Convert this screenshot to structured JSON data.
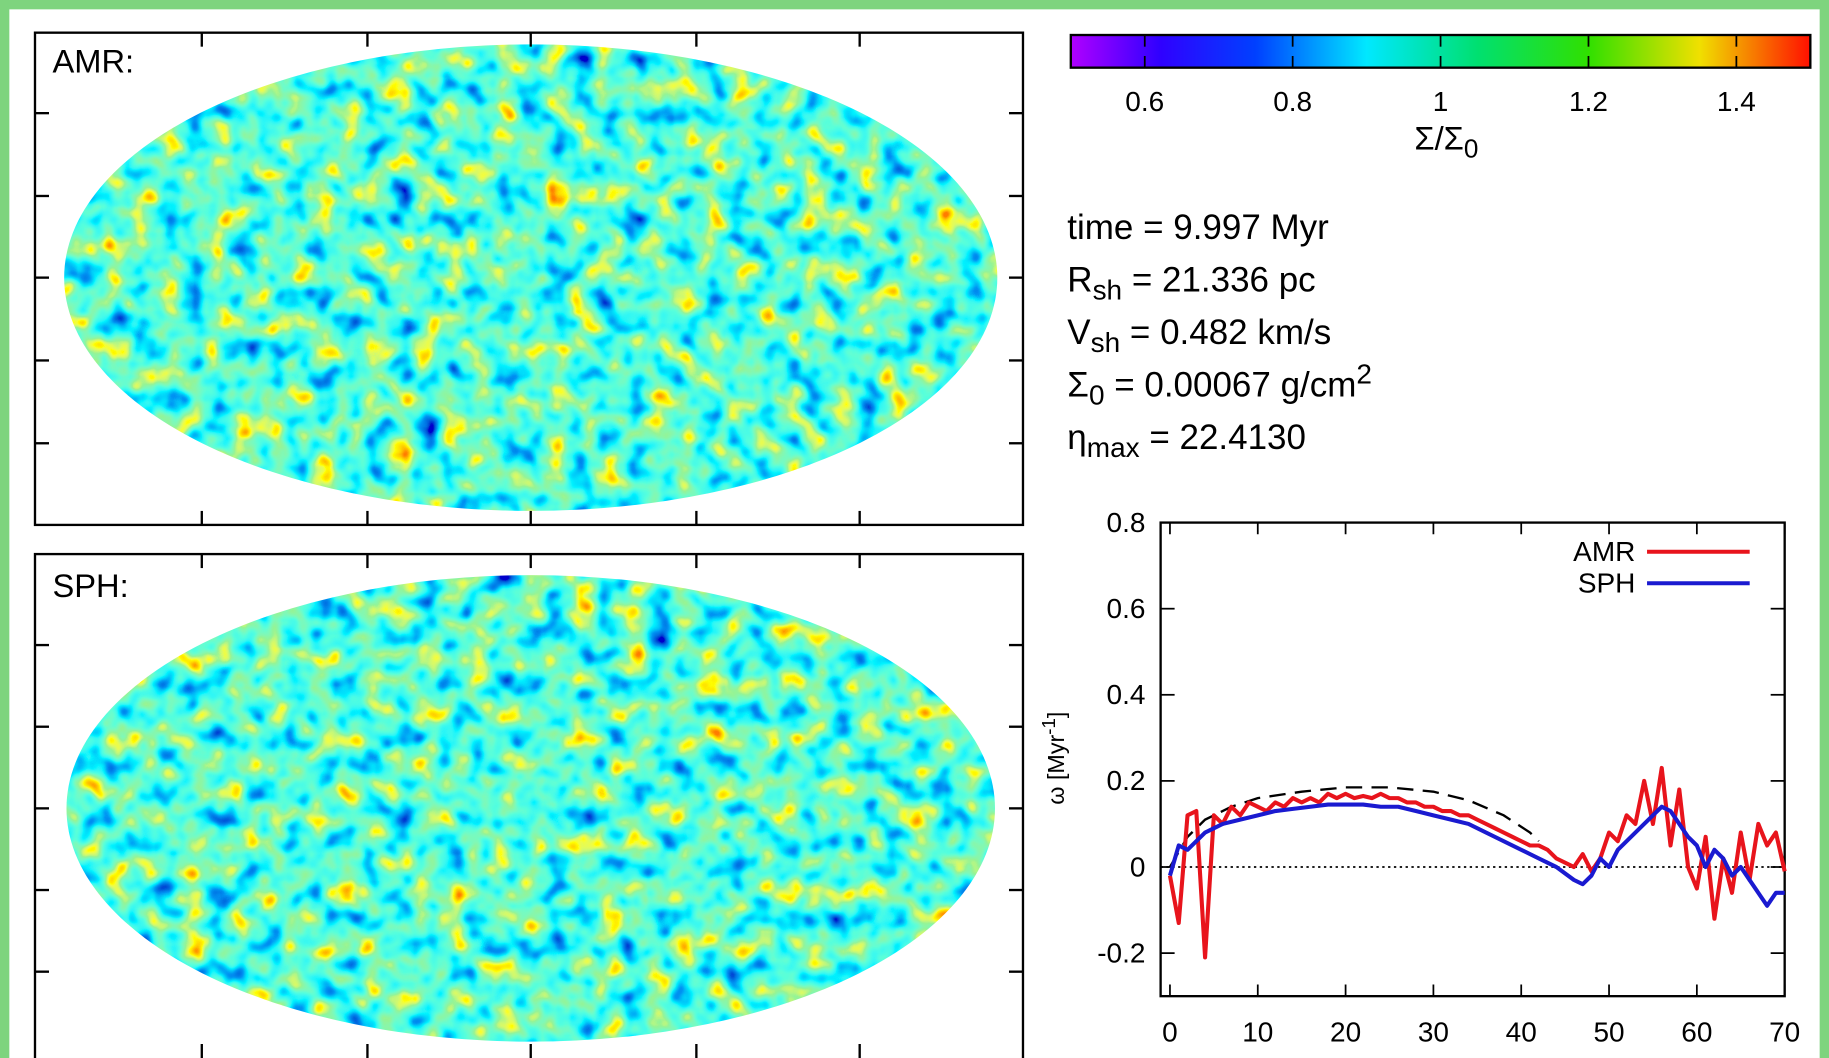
{
  "panels": [
    {
      "label": "AMR:"
    },
    {
      "label": "SPH:"
    }
  ],
  "info": {
    "lines": [
      [
        "time =   9.997 Myr"
      ],
      [
        "R",
        {
          "sub": "sh"
        },
        " =  21.336 pc"
      ],
      [
        "V",
        {
          "sub": "sh"
        },
        " =   0.482 km/s"
      ],
      [
        "Σ",
        {
          "sub": "0"
        },
        " = 0.00067 g/cm",
        {
          "sup": "2"
        }
      ],
      [
        "η",
        {
          "sub": "max"
        },
        " = 22.4130"
      ]
    ]
  },
  "chart_data": [
    {
      "type": "colorbar",
      "label": "Σ/Σ",
      "label_sub": "0",
      "xlim": [
        0.5,
        1.5
      ],
      "xticks": [
        0.6,
        0.8,
        1,
        1.2,
        1.4
      ]
    },
    {
      "type": "line",
      "ylabel": [
        "ω [Myr",
        {
          "sup": "-1"
        },
        "]"
      ],
      "xlim": [
        0,
        70
      ],
      "xticks": [
        0,
        10,
        20,
        30,
        40,
        50,
        60,
        70
      ],
      "ylim": [
        -0.3,
        0.8
      ],
      "yticks": [
        -0.2,
        0,
        0.2,
        0.4,
        0.6,
        0.8
      ],
      "legend": "upper right",
      "hline": 0,
      "series": [
        {
          "name": "AMR",
          "color": "#e8141c",
          "x": [
            0,
            1,
            2,
            3,
            4,
            5,
            6,
            7,
            8,
            9,
            10,
            11,
            12,
            13,
            14,
            15,
            16,
            17,
            18,
            19,
            20,
            21,
            22,
            23,
            24,
            25,
            26,
            27,
            28,
            29,
            30,
            31,
            32,
            33,
            34,
            35,
            36,
            37,
            38,
            39,
            40,
            41,
            42,
            43,
            44,
            45,
            46,
            47,
            48,
            49,
            50,
            51,
            52,
            53,
            54,
            55,
            56,
            57,
            58,
            59,
            60,
            61,
            62,
            63,
            64,
            65,
            66,
            67,
            68,
            69,
            70
          ],
          "values": [
            -0.02,
            -0.13,
            0.12,
            0.13,
            -0.21,
            0.12,
            0.1,
            0.14,
            0.12,
            0.15,
            0.14,
            0.13,
            0.15,
            0.14,
            0.16,
            0.15,
            0.16,
            0.15,
            0.17,
            0.16,
            0.17,
            0.16,
            0.165,
            0.16,
            0.17,
            0.16,
            0.16,
            0.15,
            0.15,
            0.14,
            0.14,
            0.13,
            0.13,
            0.12,
            0.12,
            0.11,
            0.1,
            0.09,
            0.08,
            0.07,
            0.06,
            0.05,
            0.05,
            0.04,
            0.02,
            0.01,
            0.0,
            0.03,
            -0.01,
            0.02,
            0.08,
            0.06,
            0.12,
            0.1,
            0.2,
            0.1,
            0.23,
            0.05,
            0.18,
            0.0,
            -0.05,
            0.07,
            -0.12,
            0.02,
            -0.06,
            0.08,
            -0.03,
            0.1,
            0.05,
            0.08,
            -0.01
          ]
        },
        {
          "name": "SPH",
          "color": "#1a1ad0",
          "x": [
            0,
            1,
            2,
            3,
            4,
            5,
            6,
            8,
            10,
            12,
            14,
            16,
            18,
            20,
            22,
            24,
            26,
            28,
            30,
            32,
            34,
            36,
            38,
            40,
            42,
            44,
            46,
            47,
            48,
            49,
            50,
            51,
            52,
            53,
            54,
            55,
            56,
            57,
            58,
            59,
            60,
            61,
            62,
            63,
            64,
            65,
            66,
            67,
            68,
            69,
            70
          ],
          "values": [
            -0.02,
            0.05,
            0.04,
            0.06,
            0.08,
            0.09,
            0.1,
            0.11,
            0.12,
            0.13,
            0.135,
            0.14,
            0.145,
            0.145,
            0.145,
            0.14,
            0.14,
            0.13,
            0.12,
            0.11,
            0.1,
            0.08,
            0.06,
            0.04,
            0.02,
            0.0,
            -0.03,
            -0.04,
            -0.02,
            0.02,
            0.0,
            0.04,
            0.06,
            0.08,
            0.1,
            0.12,
            0.14,
            0.13,
            0.1,
            0.07,
            0.05,
            0.0,
            0.04,
            0.02,
            -0.02,
            0.0,
            -0.03,
            -0.06,
            -0.09,
            -0.06,
            -0.06
          ]
        }
      ],
      "curves": [
        {
          "color": "#000000",
          "dash": true,
          "x": [
            0,
            2,
            4,
            7,
            10,
            15,
            20,
            25,
            30,
            34,
            38,
            41,
            42
          ],
          "values": [
            0.0,
            0.07,
            0.11,
            0.14,
            0.16,
            0.175,
            0.185,
            0.185,
            0.175,
            0.155,
            0.12,
            0.08,
            0.06
          ]
        }
      ]
    }
  ]
}
